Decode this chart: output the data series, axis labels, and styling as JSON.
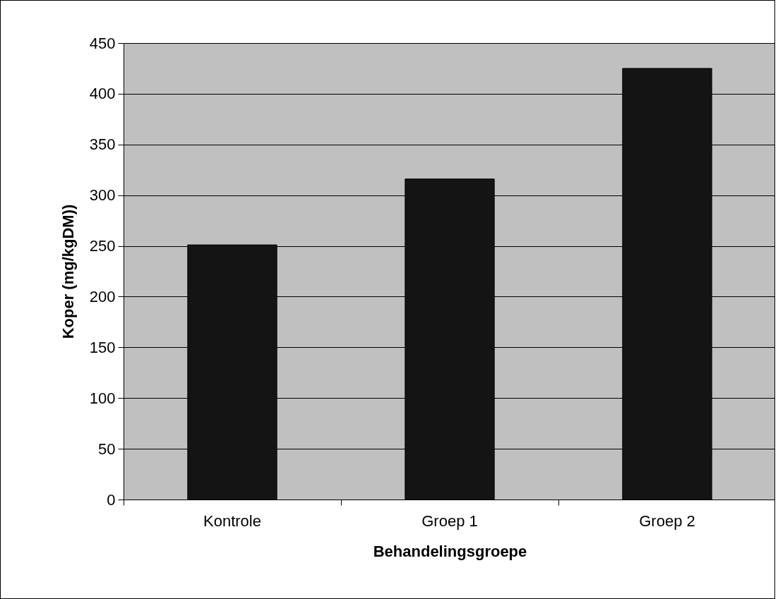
{
  "chart_data": {
    "type": "bar",
    "xlabel": "Behandelingsgroepe",
    "ylabel": "Koper (mg/kgDM))",
    "categories": [
      "Kontrole",
      "Groep 1",
      "Groep 2"
    ],
    "values": [
      251,
      316,
      425
    ],
    "color": "#141414",
    "ylim": [
      0,
      450
    ],
    "yticks": [
      0,
      50,
      100,
      150,
      200,
      250,
      300,
      350,
      400,
      450
    ],
    "grid": "y"
  }
}
